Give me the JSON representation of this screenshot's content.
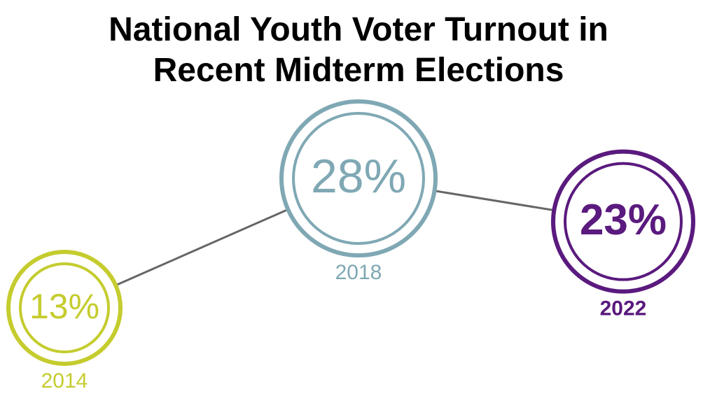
{
  "chart_data": {
    "type": "line",
    "title": "National Youth Voter Turnout in Recent Midterm Elections",
    "categories": [
      "2014",
      "2018",
      "2022"
    ],
    "values": [
      13,
      28,
      23
    ],
    "value_labels": [
      "13%",
      "28%",
      "23%"
    ],
    "colors": [
      "#c5cc2e",
      "#7fa8b4",
      "#5a1a7e"
    ],
    "line_color": "#666666"
  }
}
